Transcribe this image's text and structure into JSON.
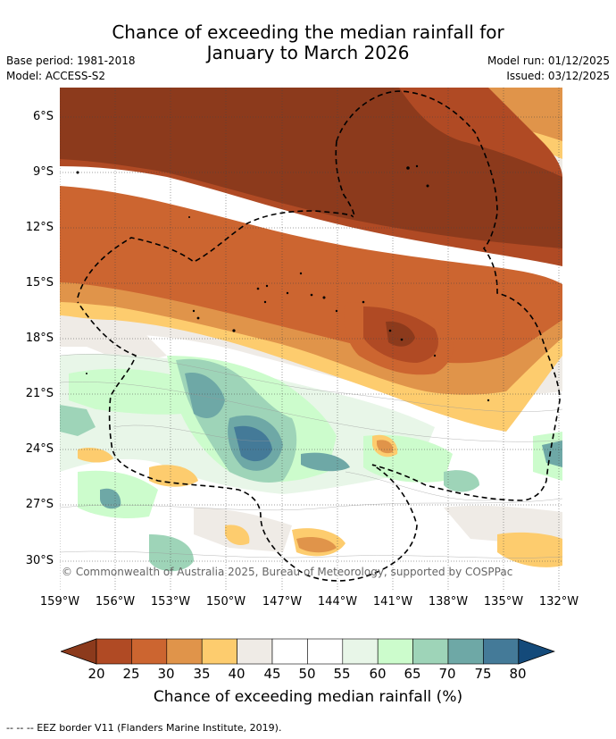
{
  "header": {
    "title_line1": "Chance of exceeding the median rainfall for",
    "title_line2": "January to March 2026",
    "base_period": "Base period: 1981-2018",
    "model": "Model: ACCESS-S2",
    "model_run": "Model run: 01/12/2025",
    "issued": "Issued: 03/12/2025"
  },
  "map": {
    "lat_ticks": [
      "6°S",
      "9°S",
      "12°S",
      "15°S",
      "18°S",
      "21°S",
      "24°S",
      "27°S",
      "30°S"
    ],
    "lon_ticks": [
      "159°W",
      "156°W",
      "153°W",
      "150°W",
      "147°W",
      "144°W",
      "141°W",
      "138°W",
      "135°W",
      "132°W"
    ],
    "copyright": "© Commonwealth of Australia 2025, Bureau of Meteorology, supported by COSPPac"
  },
  "colorbar": {
    "ticks": [
      "20",
      "25",
      "30",
      "35",
      "40",
      "45",
      "50",
      "55",
      "60",
      "65",
      "70",
      "75",
      "80"
    ],
    "colors": [
      "#8c3a1c",
      "#b04a24",
      "#cc6530",
      "#e0944a",
      "#fdcc6e",
      "#efebe6",
      "#ffffff",
      "#ffffff",
      "#e8f6e8",
      "#ccfccc",
      "#9ed4b8",
      "#6ea8a6",
      "#447a98",
      "#144a7a"
    ],
    "label": "Chance of exceeding median rainfall (%)"
  },
  "footer": {
    "eez_note": "--  --  -- EEZ border V11 (Flanders Marine Institute, 2019)."
  }
}
